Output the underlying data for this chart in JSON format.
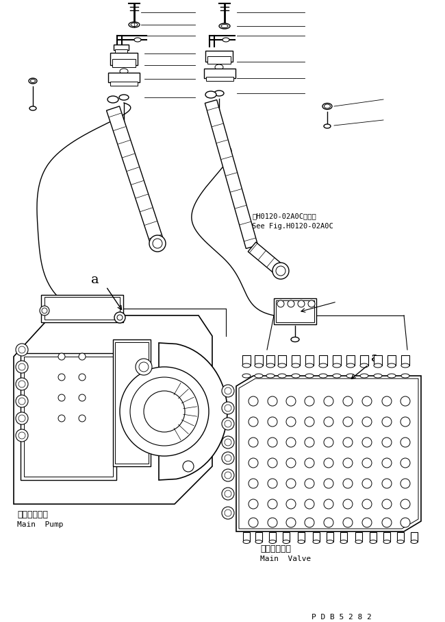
{
  "bg_color": "#ffffff",
  "line_color": "#000000",
  "fig_width": 6.5,
  "fig_height": 9.07,
  "dpi": 100,
  "part_code": "P D B 5 2 8 2",
  "ref_line1": "第H0120-02A0C図参照",
  "ref_line2": "See Fig.H0120-02A0C",
  "label_main_pump_jp": "メインポンプ",
  "label_main_pump_en": "Main  Pump",
  "label_main_valve_jp": "メインバルブ",
  "label_main_valve_en": "Main  Valve",
  "label_a": "a"
}
